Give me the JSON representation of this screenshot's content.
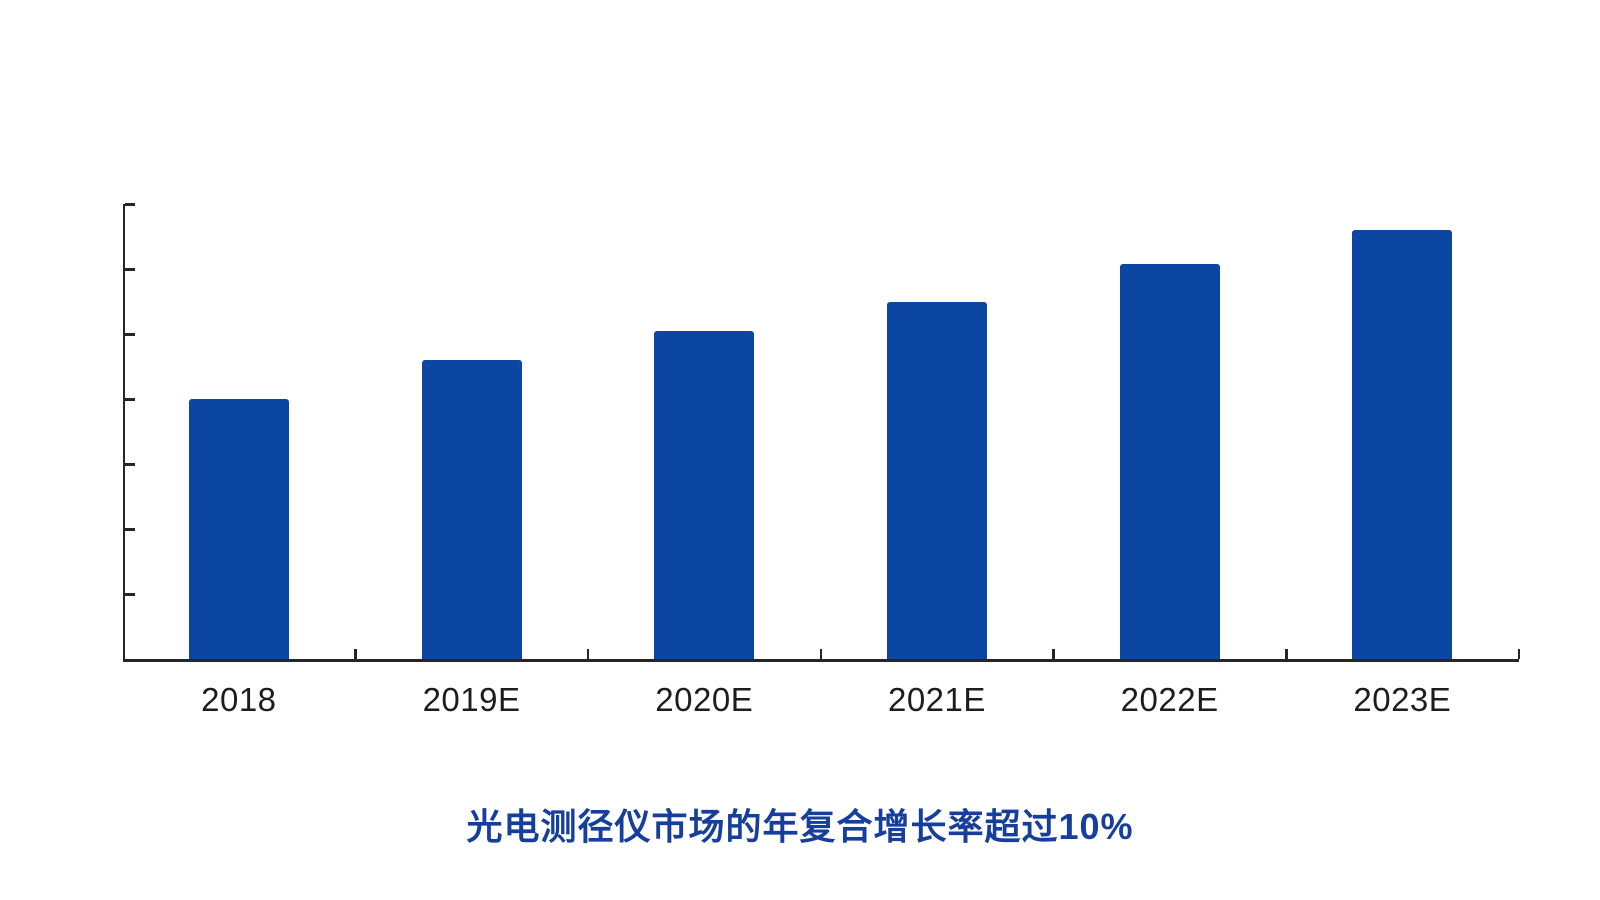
{
  "chart_data": {
    "type": "bar",
    "title": "光电测径仪市场的年复合增长率超过10%",
    "xlabel": "",
    "ylabel": "",
    "categories": [
      "2018",
      "2019E",
      "2020E",
      "2021E",
      "2022E",
      "2023E"
    ],
    "values": [
      40,
      46,
      50.5,
      55,
      60.8,
      66
    ],
    "ylim": [
      0,
      70
    ],
    "y_tick_step": 10,
    "y_tick_labels": [],
    "grid": false,
    "legend": false,
    "bar_color": "#0b46a2",
    "axis_color": "#262626",
    "x_label_color": "#1d1d1d",
    "caption_color": "#163f9d"
  }
}
